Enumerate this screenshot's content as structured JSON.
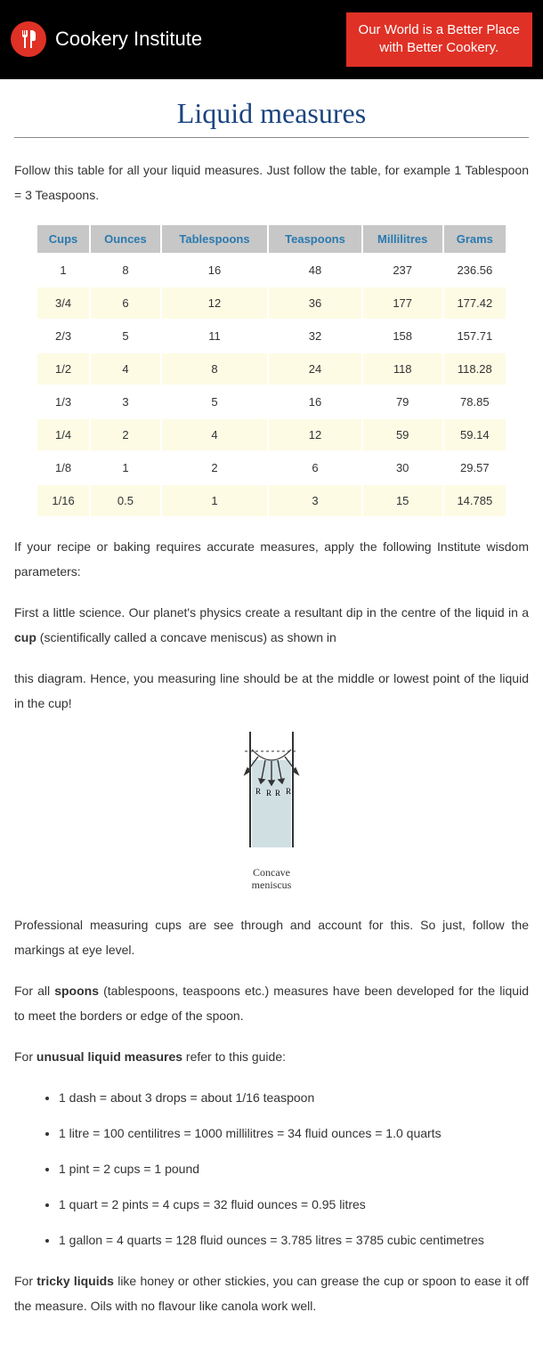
{
  "header": {
    "brand": "Cookery Institute",
    "tagline_line1": "Our World is a Better Place",
    "tagline_line2": "with Better Cookery.",
    "banner_bg": "#000000",
    "tagline_bg": "#e03126",
    "logo_bg": "#e03126"
  },
  "title": "Liquid measures",
  "title_color": "#1a4480",
  "intro": "Follow this table for all your liquid measures. Just follow the table, for example 1 Tablespoon = 3 Teaspoons.",
  "table": {
    "header_bg": "#c7c7c7",
    "header_color": "#2a7ab0",
    "alt_row_bg": "#fdfbe4",
    "columns": [
      "Cups",
      "Ounces",
      "Tablespoons",
      "Teaspoons",
      "Millilitres",
      "Grams"
    ],
    "rows": [
      [
        "1",
        "8",
        "16",
        "48",
        "237",
        "236.56"
      ],
      [
        "3/4",
        "6",
        "12",
        "36",
        "177",
        "177.42"
      ],
      [
        "2/3",
        "5",
        "11",
        "32",
        "158",
        "157.71"
      ],
      [
        "1/2",
        "4",
        "8",
        "24",
        "118",
        "118.28"
      ],
      [
        "1/3",
        "3",
        "5",
        "16",
        "79",
        "78.85"
      ],
      [
        "1/4",
        "2",
        "4",
        "12",
        "59",
        "59.14"
      ],
      [
        "1/8",
        "1",
        "2",
        "6",
        "30",
        "29.57"
      ],
      [
        "1/16",
        "0.5",
        "1",
        "3",
        "15",
        "14.785"
      ]
    ]
  },
  "para1": "If your recipe or baking requires accurate measures, apply the following Institute wisdom parameters:",
  "para2_pre": "First a little science. Our planet's physics create a resultant dip in the centre of the liquid in a ",
  "para2_bold": "cup",
  "para2_post": " (scientifically called a concave meniscus) as shown in",
  "para3": "this diagram. Hence, you measuring line should be at the middle or lowest point of the liquid in the cup!",
  "diagram": {
    "caption_line1": "Concave",
    "caption_line2": "meniscus",
    "label_R": "R",
    "tube_fill": "#d0dfe2",
    "tube_stroke": "#333333"
  },
  "para4": "Professional measuring cups are see through and account for this. So just, follow the markings at eye level.",
  "para5_pre": "For all ",
  "para5_bold": "spoons",
  "para5_post": " (tablespoons, teaspoons etc.) measures have been developed for the liquid to meet the borders or edge of the spoon.",
  "para6_pre": "For ",
  "para6_bold": "unusual liquid measures",
  "para6_post": " refer to this guide:",
  "guide": [
    "1 dash = about 3 drops = about 1/16 teaspoon",
    "1 litre = 100 centilitres = 1000 millilitres = 34 fluid ounces = 1.0 quarts",
    "1 pint = 2 cups = 1 pound",
    "1 quart = 2 pints = 4 cups = 32 fluid ounces = 0.95 litres",
    "1 gallon = 4 quarts = 128 fluid ounces = 3.785 litres = 3785 cubic centimetres"
  ],
  "para7_pre": "For ",
  "para7_bold": "tricky liquids",
  "para7_post": " like honey or other stickies, you can grease the cup or spoon to ease it off the measure. Oils with no flavour like canola work well."
}
